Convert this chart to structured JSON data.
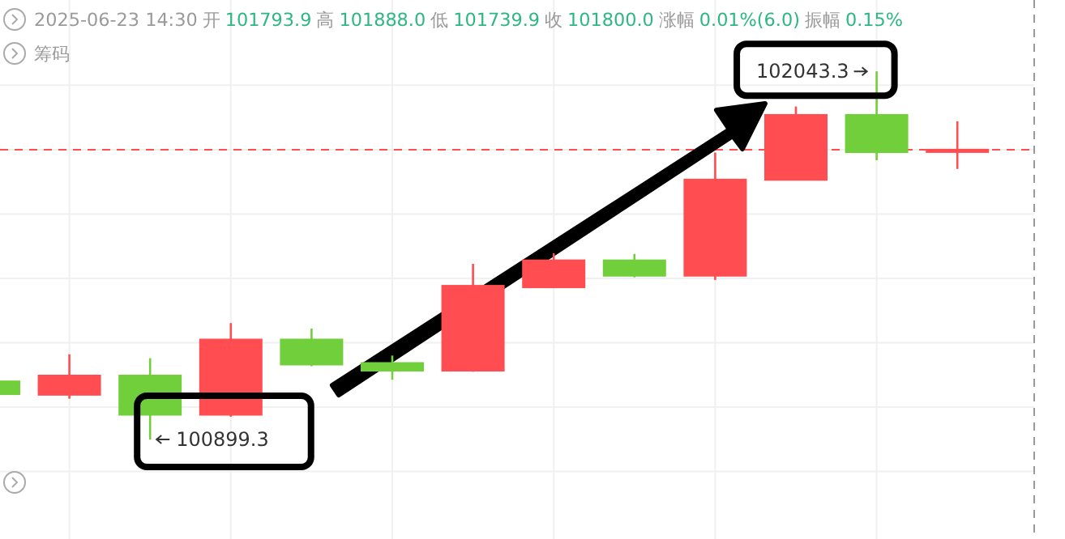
{
  "chart_data": {
    "type": "candlestick",
    "categories": [
      null,
      null,
      null,
      null,
      null,
      null,
      null,
      null,
      null,
      null,
      null,
      null,
      null
    ],
    "ohlc": [
      [
        101080,
        101080,
        101040,
        101040
      ],
      [
        101038,
        101164,
        101026,
        101098
      ],
      [
        101098,
        101152,
        100899.3,
        100976
      ],
      [
        100976,
        101261,
        100970,
        101210
      ],
      [
        101210,
        101244,
        101127,
        101132
      ],
      [
        101137,
        101160,
        101085,
        101113
      ],
      [
        101113,
        101445,
        101110,
        101377
      ],
      [
        101372,
        101478,
        101370,
        101456
      ],
      [
        101456,
        101476,
        101403,
        101408
      ],
      [
        101408,
        101791,
        101395,
        101707
      ],
      [
        101706,
        101934,
        101706,
        101908
      ],
      [
        101908,
        102043.3,
        101767,
        101792
      ],
      [
        101793.9,
        101888.0,
        101739.9,
        101800.0
      ]
    ],
    "colors": [
      "#72cf3c",
      "#ff4d52",
      "#72cf3c",
      "#ff4d52",
      "#72cf3c",
      "#72cf3c",
      "#ff4d52",
      "#ff4d52",
      "#72cf3c",
      "#ff4d52",
      "#ff4d52",
      "#72cf3c",
      "#ff4d52"
    ],
    "ylim": [
      100590,
      102265
    ],
    "yticks": [
      {
        "value": 100800,
        "label": null
      },
      {
        "value": 101000,
        "label": null
      },
      {
        "value": 101200,
        "label": null
      },
      {
        "value": 101400,
        "label": null
      },
      {
        "value": 101600,
        "label": null
      },
      {
        "value": 101800,
        "label": null
      },
      {
        "value": 102000,
        "label": null
      }
    ],
    "grid": true,
    "ref_lines": [
      {
        "axis": "y",
        "value": 101800.0,
        "color": "#ff4d52",
        "line_style": "dashed"
      }
    ],
    "annotations": [
      "2025-06-23 14:30",
      "开",
      "101793.9",
      "高",
      "101888.0",
      "低",
      "101739.9",
      "收",
      "101800.0",
      "涨幅",
      "0.01%(6.0)",
      "振幅",
      "0.15%",
      "筹码",
      "102043.3",
      "100899.3"
    ]
  }
}
